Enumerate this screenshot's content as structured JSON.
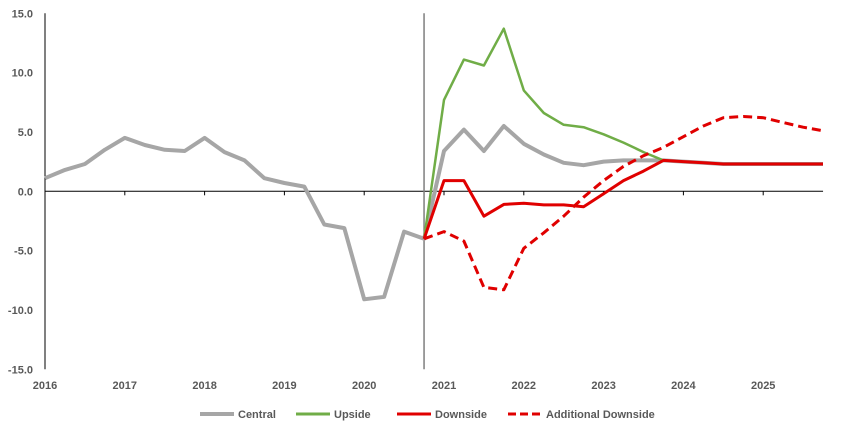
{
  "chart_data": {
    "type": "line",
    "title": "",
    "xlabel": "",
    "ylabel": "",
    "ylim": [
      -15,
      15
    ],
    "yticks": [
      "15.0",
      "10.0",
      "5.0",
      "0.0",
      "-5.0",
      "-10.0",
      "-15.0"
    ],
    "ytick_values": [
      15,
      10,
      5,
      0,
      -5,
      -10,
      -15
    ],
    "xlim": [
      2016,
      2025.75
    ],
    "xticks": [
      "2016",
      "2017",
      "2018",
      "2019",
      "2020",
      "2021",
      "2022",
      "2023",
      "2024",
      "2025"
    ],
    "grid": false,
    "legend_position": "bottom",
    "forecast_divider_x": 2020.75,
    "series": [
      {
        "name": "Central",
        "color": "#A6A6A6",
        "dash": false,
        "x": [
          2016,
          2016.25,
          2016.5,
          2016.75,
          2017,
          2017.25,
          2017.5,
          2017.75,
          2018,
          2018.25,
          2018.5,
          2018.75,
          2019,
          2019.25,
          2019.5,
          2019.75,
          2020,
          2020.25,
          2020.5,
          2020.75,
          2021,
          2021.25,
          2021.5,
          2021.75,
          2022,
          2022.25,
          2022.5,
          2022.75,
          2023,
          2023.25,
          2023.5,
          2023.75,
          2024,
          2024.25,
          2024.5,
          2024.75,
          2025,
          2025.25,
          2025.5,
          2025.75
        ],
        "y": [
          1.1,
          1.8,
          2.3,
          3.5,
          4.5,
          3.9,
          3.5,
          3.4,
          4.5,
          3.3,
          2.6,
          1.1,
          0.7,
          0.4,
          -2.8,
          -3.1,
          -9.1,
          -8.9,
          -3.4,
          -4.0,
          3.4,
          5.2,
          3.4,
          5.5,
          4.0,
          3.1,
          2.4,
          2.2,
          2.5,
          2.6,
          2.6,
          2.6,
          2.5,
          2.4,
          2.3,
          2.3,
          2.3,
          2.3,
          2.3,
          2.3
        ]
      },
      {
        "name": "Upside",
        "color": "#70AD47",
        "dash": false,
        "x": [
          2020.75,
          2021,
          2021.25,
          2021.5,
          2021.75,
          2022,
          2022.25,
          2022.5,
          2022.75,
          2023,
          2023.25,
          2023.5,
          2023.75
        ],
        "y": [
          -4.0,
          7.7,
          11.1,
          10.6,
          13.7,
          8.5,
          6.6,
          5.6,
          5.4,
          4.8,
          4.1,
          3.3,
          2.6
        ]
      },
      {
        "name": "Downside",
        "color": "#E00000",
        "dash": false,
        "x": [
          2020.75,
          2021,
          2021.25,
          2021.5,
          2021.75,
          2022,
          2022.25,
          2022.5,
          2022.75,
          2023,
          2023.25,
          2023.5,
          2023.75,
          2024,
          2024.25,
          2024.5,
          2024.75,
          2025,
          2025.25,
          2025.5,
          2025.75
        ],
        "y": [
          -4.0,
          0.9,
          0.9,
          -2.1,
          -1.1,
          -1.0,
          -1.15,
          -1.15,
          -1.3,
          -0.2,
          0.9,
          1.7,
          2.6,
          2.5,
          2.4,
          2.3,
          2.3,
          2.3,
          2.3,
          2.3,
          2.3
        ]
      },
      {
        "name": "Additional Downside",
        "color": "#E00000",
        "dash": true,
        "x": [
          2020.75,
          2021,
          2021.25,
          2021.5,
          2021.75,
          2022,
          2022.25,
          2022.5,
          2022.75,
          2023,
          2023.25,
          2023.5,
          2023.75,
          2024,
          2024.25,
          2024.5,
          2024.75,
          2025,
          2025.25,
          2025.5,
          2025.75
        ],
        "y": [
          -4.0,
          -3.4,
          -4.2,
          -8.1,
          -8.3,
          -4.8,
          -3.5,
          -2.1,
          -0.5,
          0.9,
          2.1,
          3.0,
          3.7,
          4.6,
          5.5,
          6.2,
          6.3,
          6.2,
          5.8,
          5.4,
          5.1
        ]
      }
    ]
  }
}
